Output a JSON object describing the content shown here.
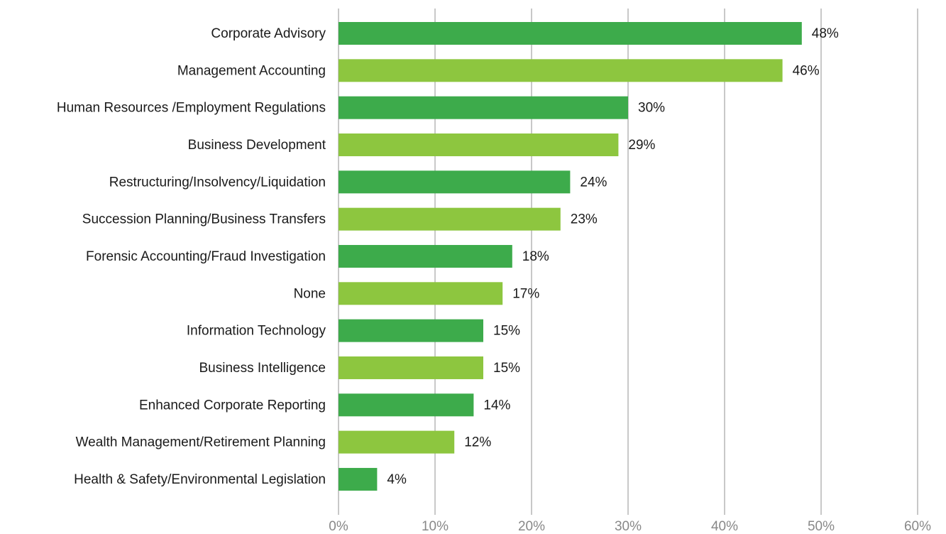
{
  "chart_data": {
    "type": "barh",
    "categories": [
      "Corporate Advisory",
      "Management Accounting",
      "Human Resources /Employment Regulations",
      "Business Development",
      "Restructuring/Insolvency/Liquidation",
      "Succession Planning/Business Transfers",
      "Forensic Accounting/Fraud Investigation",
      "None",
      "Information Technology",
      "Business Intelligence",
      "Enhanced Corporate Reporting",
      "Wealth Management/Retirement Planning",
      "Health & Safety/Environmental Legislation"
    ],
    "values": [
      48,
      46,
      30,
      29,
      24,
      23,
      18,
      17,
      15,
      15,
      14,
      12,
      4
    ],
    "value_labels": [
      "48%",
      "46%",
      "30%",
      "29%",
      "24%",
      "23%",
      "18%",
      "17%",
      "15%",
      "15%",
      "14%",
      "12%",
      "4%"
    ],
    "colors": [
      "#3dab4b",
      "#8dc63f",
      "#3dab4b",
      "#8dc63f",
      "#3dab4b",
      "#8dc63f",
      "#3dab4b",
      "#8dc63f",
      "#3dab4b",
      "#8dc63f",
      "#3dab4b",
      "#8dc63f",
      "#3dab4b"
    ],
    "xlim": [
      0,
      60
    ],
    "xticks": [
      {
        "value": 0,
        "label": "0%"
      },
      {
        "value": 10,
        "label": "10%"
      },
      {
        "value": 20,
        "label": "20%"
      },
      {
        "value": 30,
        "label": "30%"
      },
      {
        "value": 40,
        "label": "40%"
      },
      {
        "value": 50,
        "label": "50%"
      },
      {
        "value": 60,
        "label": "60%"
      }
    ],
    "grid": true
  }
}
